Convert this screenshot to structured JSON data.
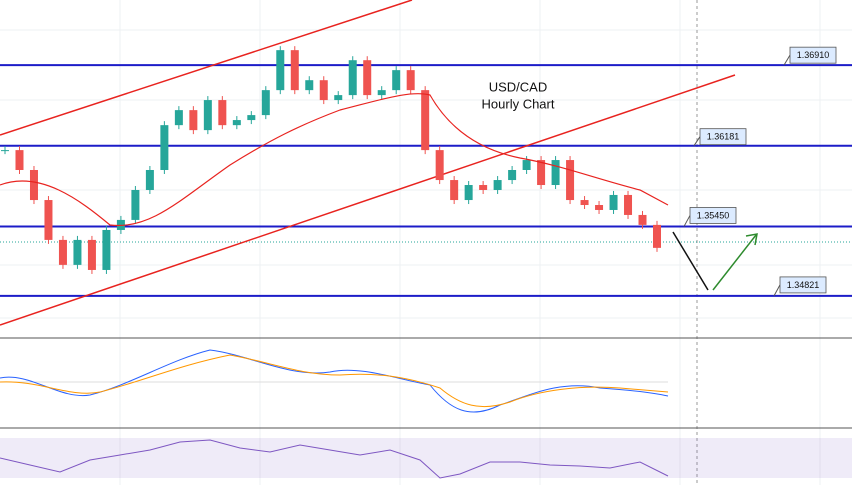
{
  "chart_data": {
    "type": "candlestick",
    "title": "USD/CAD",
    "subtitle": "Hourly Chart",
    "values": [
      1.36141,
      1.35961,
      1.35689,
      1.35328,
      1.35102,
      1.35328,
      1.35056,
      1.35418,
      1.35509,
      1.3578,
      1.35961,
      1.36367,
      1.36503,
      1.36322,
      1.36594,
      1.36367,
      1.36413,
      1.36458,
      1.36684,
      1.37046,
      1.36684,
      1.36774,
      1.36594,
      1.36639,
      1.36955,
      1.36639,
      1.36684,
      1.36865,
      1.36684,
      1.36141,
      1.3587,
      1.35689,
      1.35825,
      1.3578,
      1.3587,
      1.35961,
      1.36051,
      1.35825,
      1.36051,
      1.35689,
      1.35644,
      1.35599,
      1.35735,
      1.35554,
      1.35464,
      1.35256
    ],
    "up_color": "#26a69a",
    "down_color": "#ef5350",
    "level_color": "#1c1cc8",
    "ylim": [
      1.3444,
      1.375
    ],
    "levels": [
      {
        "value": 1.3691,
        "label": "1.36910"
      },
      {
        "value": 1.36181,
        "label": "1.36181"
      },
      {
        "value": 1.3545,
        "label": "1.35450"
      },
      {
        "value": 1.34821,
        "label": "1.34821"
      }
    ]
  }
}
